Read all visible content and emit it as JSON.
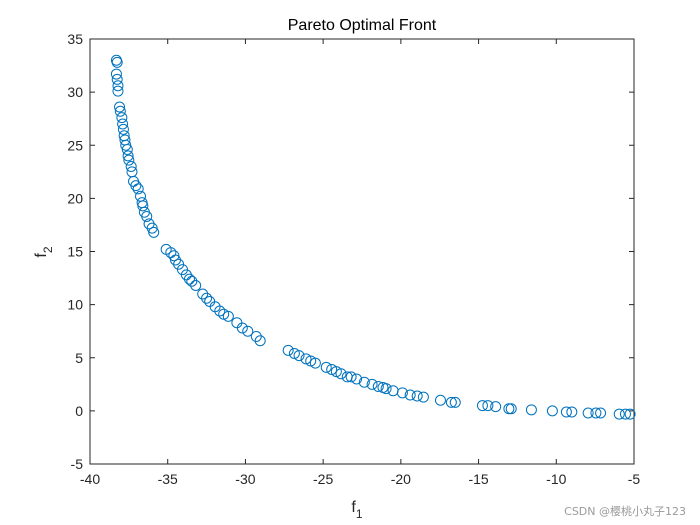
{
  "chart_data": {
    "type": "scatter",
    "title": "Pareto Optimal Front",
    "xlabel_base": "f",
    "xlabel_sub": "1",
    "ylabel_base": "f",
    "ylabel_sub": "2",
    "xlim": [
      -40,
      -5
    ],
    "ylim": [
      -5,
      35
    ],
    "xticks": [
      -40,
      -35,
      -30,
      -25,
      -20,
      -15,
      -10,
      -5
    ],
    "yticks": [
      -5,
      0,
      5,
      10,
      15,
      20,
      25,
      30,
      35
    ],
    "xtick_labels": [
      "-40",
      "-35",
      "-30",
      "-25",
      "-20",
      "-15",
      "-10",
      "-5"
    ],
    "ytick_labels": [
      "-5",
      "0",
      "5",
      "10",
      "15",
      "20",
      "25",
      "30",
      "35"
    ],
    "grid": false,
    "marker": "circle-open",
    "color": "#0072BD",
    "series": [
      {
        "points": [
          [
            -38.3,
            33.0
          ],
          [
            -38.25,
            32.8
          ],
          [
            -38.3,
            31.7
          ],
          [
            -38.25,
            31.2
          ],
          [
            -38.2,
            30.6
          ],
          [
            -38.2,
            30.1
          ],
          [
            -38.1,
            28.6
          ],
          [
            -38.05,
            28.2
          ],
          [
            -37.95,
            27.6
          ],
          [
            -37.9,
            27.0
          ],
          [
            -37.85,
            26.5
          ],
          [
            -37.8,
            25.9
          ],
          [
            -37.75,
            25.5
          ],
          [
            -37.7,
            25.0
          ],
          [
            -37.6,
            24.6
          ],
          [
            -37.55,
            24.0
          ],
          [
            -37.5,
            23.6
          ],
          [
            -37.35,
            23.0
          ],
          [
            -37.3,
            22.5
          ],
          [
            -37.2,
            21.6
          ],
          [
            -37.05,
            21.2
          ],
          [
            -36.9,
            20.9
          ],
          [
            -36.75,
            20.2
          ],
          [
            -36.65,
            19.6
          ],
          [
            -36.6,
            19.3
          ],
          [
            -36.5,
            18.7
          ],
          [
            -36.35,
            18.3
          ],
          [
            -36.2,
            17.6
          ],
          [
            -36.0,
            17.2
          ],
          [
            -35.9,
            16.8
          ],
          [
            -35.1,
            15.2
          ],
          [
            -34.8,
            14.9
          ],
          [
            -34.6,
            14.6
          ],
          [
            -34.5,
            14.2
          ],
          [
            -34.3,
            13.8
          ],
          [
            -34.05,
            13.3
          ],
          [
            -33.8,
            12.8
          ],
          [
            -33.6,
            12.4
          ],
          [
            -33.45,
            12.2
          ],
          [
            -33.2,
            11.8
          ],
          [
            -32.75,
            11.0
          ],
          [
            -32.5,
            10.6
          ],
          [
            -32.3,
            10.3
          ],
          [
            -31.95,
            9.8
          ],
          [
            -31.65,
            9.4
          ],
          [
            -31.4,
            9.1
          ],
          [
            -31.1,
            8.9
          ],
          [
            -30.55,
            8.3
          ],
          [
            -30.2,
            7.8
          ],
          [
            -29.85,
            7.5
          ],
          [
            -29.3,
            7.0
          ],
          [
            -29.05,
            6.6
          ],
          [
            -27.25,
            5.7
          ],
          [
            -26.85,
            5.4
          ],
          [
            -26.55,
            5.2
          ],
          [
            -26.1,
            4.9
          ],
          [
            -25.8,
            4.7
          ],
          [
            -25.5,
            4.5
          ],
          [
            -24.8,
            4.1
          ],
          [
            -24.45,
            3.9
          ],
          [
            -24.15,
            3.7
          ],
          [
            -23.85,
            3.5
          ],
          [
            -23.45,
            3.2
          ],
          [
            -23.2,
            3.2
          ],
          [
            -22.85,
            3.0
          ],
          [
            -22.35,
            2.7
          ],
          [
            -21.85,
            2.5
          ],
          [
            -21.45,
            2.3
          ],
          [
            -21.15,
            2.2
          ],
          [
            -20.95,
            2.1
          ],
          [
            -20.5,
            1.9
          ],
          [
            -19.9,
            1.7
          ],
          [
            -19.4,
            1.5
          ],
          [
            -18.95,
            1.4
          ],
          [
            -18.55,
            1.3
          ],
          [
            -17.45,
            1.0
          ],
          [
            -16.75,
            0.8
          ],
          [
            -16.5,
            0.8
          ],
          [
            -14.75,
            0.5
          ],
          [
            -14.4,
            0.5
          ],
          [
            -13.9,
            0.4
          ],
          [
            -13.05,
            0.2
          ],
          [
            -12.9,
            0.2
          ],
          [
            -11.6,
            0.1
          ],
          [
            -10.25,
            0.0
          ],
          [
            -9.35,
            -0.1
          ],
          [
            -9.0,
            -0.1
          ],
          [
            -7.95,
            -0.2
          ],
          [
            -7.45,
            -0.2
          ],
          [
            -7.15,
            -0.2
          ],
          [
            -5.95,
            -0.3
          ],
          [
            -5.55,
            -0.3
          ],
          [
            -5.25,
            -0.3
          ]
        ]
      }
    ]
  },
  "watermark": "CSDN @樱桃小丸子123"
}
